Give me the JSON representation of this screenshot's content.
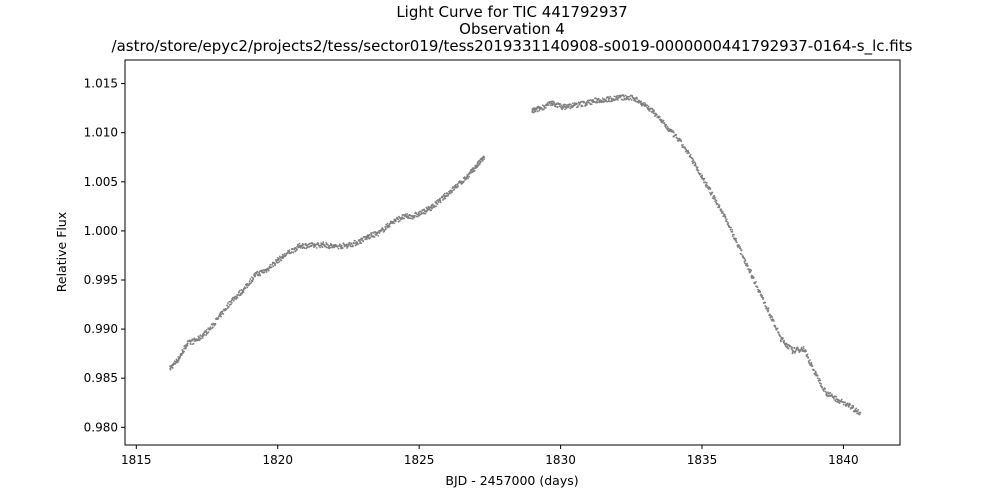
{
  "chart_data": {
    "type": "scatter",
    "title": "Light Curve for TIC 441792937",
    "subtitle": "Observation 4",
    "filename": "/astro/store/epyc2/projects2/tess/sector019/tess2019331140908-s0019-0000000441792937-0164-s_lc.fits",
    "xlabel": "BJD - 2457000 (days)",
    "ylabel": "Relative Flux",
    "xlim": [
      1814.6,
      1842.0
    ],
    "ylim": [
      0.9782,
      1.0174
    ],
    "x_ticks": [
      1815,
      1820,
      1825,
      1830,
      1835,
      1840
    ],
    "x_tick_labels": [
      "1815",
      "1820",
      "1825",
      "1830",
      "1835",
      "1840"
    ],
    "y_ticks": [
      0.98,
      0.985,
      0.99,
      0.995,
      1.0,
      1.005,
      1.01,
      1.015
    ],
    "y_tick_labels": [
      "0.980",
      "0.985",
      "0.990",
      "0.995",
      "1.000",
      "1.005",
      "1.010",
      "1.015"
    ],
    "grid": false,
    "marker_color": "#7f7f7f",
    "series": [
      {
        "points": [
          [
            1816.2,
            0.986
          ],
          [
            1816.5,
            0.987
          ],
          [
            1816.8,
            0.9885
          ],
          [
            1817.2,
            0.989
          ],
          [
            1817.6,
            0.99
          ],
          [
            1818.0,
            0.9915
          ],
          [
            1818.4,
            0.993
          ],
          [
            1818.8,
            0.994
          ],
          [
            1819.2,
            0.9955
          ],
          [
            1819.6,
            0.996
          ],
          [
            1820.0,
            0.997
          ],
          [
            1820.4,
            0.9978
          ],
          [
            1820.8,
            0.9985
          ],
          [
            1821.2,
            0.9985
          ],
          [
            1821.6,
            0.9986
          ],
          [
            1822.0,
            0.9984
          ],
          [
            1822.4,
            0.9985
          ],
          [
            1822.8,
            0.9988
          ],
          [
            1823.2,
            0.9994
          ],
          [
            1823.6,
            0.9998
          ],
          [
            1824.0,
            1.0008
          ],
          [
            1824.4,
            1.0014
          ],
          [
            1824.8,
            1.0015
          ],
          [
            1825.2,
            1.002
          ],
          [
            1825.5,
            1.0025
          ],
          [
            1825.9,
            1.0035
          ],
          [
            1826.3,
            1.0045
          ],
          [
            1826.7,
            1.0055
          ],
          [
            1827.0,
            1.0065
          ],
          [
            1827.3,
            1.0075
          ],
          [
            1829.0,
            1.0122
          ],
          [
            1829.3,
            1.0125
          ],
          [
            1829.7,
            1.013
          ],
          [
            1830.1,
            1.0126
          ],
          [
            1830.5,
            1.0128
          ],
          [
            1830.9,
            1.013
          ],
          [
            1831.3,
            1.0133
          ],
          [
            1831.7,
            1.0134
          ],
          [
            1832.1,
            1.0136
          ],
          [
            1832.6,
            1.0135
          ],
          [
            1833.0,
            1.0128
          ],
          [
            1833.4,
            1.0118
          ],
          [
            1833.8,
            1.0104
          ],
          [
            1834.2,
            1.0092
          ],
          [
            1834.6,
            1.0075
          ],
          [
            1835.0,
            1.0055
          ],
          [
            1835.4,
            1.0035
          ],
          [
            1835.8,
            1.0015
          ],
          [
            1836.2,
            0.999
          ],
          [
            1836.6,
            0.9965
          ],
          [
            1837.0,
            0.994
          ],
          [
            1837.4,
            0.9915
          ],
          [
            1837.8,
            0.989
          ],
          [
            1838.2,
            0.9878
          ],
          [
            1838.6,
            0.988
          ],
          [
            1839.0,
            0.9855
          ],
          [
            1839.4,
            0.9835
          ],
          [
            1839.8,
            0.9828
          ],
          [
            1840.2,
            0.9822
          ],
          [
            1840.6,
            0.9815
          ]
        ]
      }
    ]
  }
}
